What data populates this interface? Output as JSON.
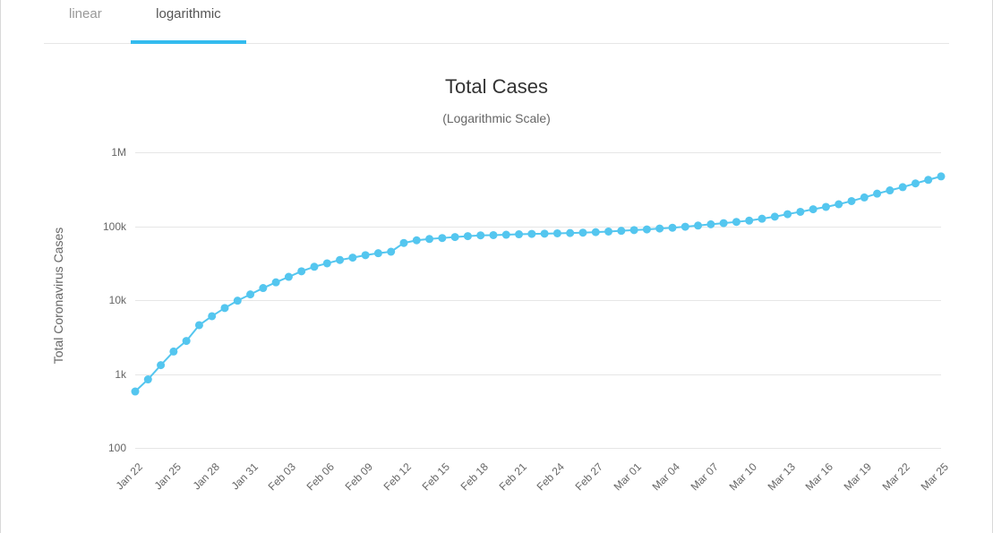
{
  "tabs": [
    {
      "label": "linear",
      "active": false
    },
    {
      "label": "logarithmic",
      "active": true
    }
  ],
  "tab_accent_color": "#33bbee",
  "chart": {
    "type": "line",
    "title": "Total Cases",
    "subtitle": "(Logarithmic Scale)",
    "yaxis_title": "Total Coronavirus Cases",
    "title_fontsize": 22,
    "subtitle_fontsize": 14,
    "axis_label_fontsize": 14,
    "tick_fontsize": 12,
    "title_color": "#333333",
    "subtitle_color": "#666666",
    "tick_color": "#666666",
    "background_color": "#ffffff",
    "grid_color": "#e6e6e6",
    "line_color": "#54c6ef",
    "line_width": 2,
    "marker_color": "#54c6ef",
    "marker_radius": 4.5,
    "yscale": "log",
    "ylim": [
      100,
      1000000
    ],
    "yticks": [
      {
        "value": 100,
        "label": "100"
      },
      {
        "value": 1000,
        "label": "1k"
      },
      {
        "value": 10000,
        "label": "10k"
      },
      {
        "value": 100000,
        "label": "100k"
      },
      {
        "value": 1000000,
        "label": "1M"
      }
    ],
    "xticks": [
      "Jan 22",
      "Jan 25",
      "Jan 28",
      "Jan 31",
      "Feb 03",
      "Feb 06",
      "Feb 09",
      "Feb 12",
      "Feb 15",
      "Feb 18",
      "Feb 21",
      "Feb 24",
      "Feb 27",
      "Mar 01",
      "Mar 04",
      "Mar 07",
      "Mar 10",
      "Mar 13",
      "Mar 16",
      "Mar 19",
      "Mar 22",
      "Mar 25"
    ],
    "xtick_interval": 3,
    "x_dates": [
      "Jan 22",
      "Jan 23",
      "Jan 24",
      "Jan 25",
      "Jan 26",
      "Jan 27",
      "Jan 28",
      "Jan 29",
      "Jan 30",
      "Jan 31",
      "Feb 01",
      "Feb 02",
      "Feb 03",
      "Feb 04",
      "Feb 05",
      "Feb 06",
      "Feb 07",
      "Feb 08",
      "Feb 09",
      "Feb 10",
      "Feb 11",
      "Feb 12",
      "Feb 13",
      "Feb 14",
      "Feb 15",
      "Feb 16",
      "Feb 17",
      "Feb 18",
      "Feb 19",
      "Feb 20",
      "Feb 21",
      "Feb 22",
      "Feb 23",
      "Feb 24",
      "Feb 25",
      "Feb 26",
      "Feb 27",
      "Feb 28",
      "Feb 29",
      "Mar 01",
      "Mar 02",
      "Mar 03",
      "Mar 04",
      "Mar 05",
      "Mar 06",
      "Mar 07",
      "Mar 08",
      "Mar 09",
      "Mar 10",
      "Mar 11",
      "Mar 12",
      "Mar 13",
      "Mar 14",
      "Mar 15",
      "Mar 16",
      "Mar 17",
      "Mar 18",
      "Mar 19",
      "Mar 20",
      "Mar 21",
      "Mar 22",
      "Mar 23",
      "Mar 24",
      "Mar 25"
    ],
    "y_values": [
      580,
      845,
      1317,
      2015,
      2800,
      4581,
      6058,
      7813,
      9823,
      11950,
      14553,
      17391,
      20630,
      24545,
      28266,
      31439,
      34876,
      37552,
      40553,
      43099,
      45134,
      59287,
      64438,
      67100,
      69197,
      71329,
      73332,
      75184,
      75700,
      76677,
      77673,
      78651,
      79205,
      80087,
      80828,
      81820,
      83112,
      84615,
      86604,
      88585,
      90443,
      93016,
      95314,
      98425,
      102050,
      106099,
      109991,
      114381,
      118948,
      126214,
      134509,
      145416,
      156475,
      169511,
      182431,
      198161,
      218822,
      244988,
      275680,
      305132,
      337612,
      379080,
      423670,
      472000
    ]
  }
}
